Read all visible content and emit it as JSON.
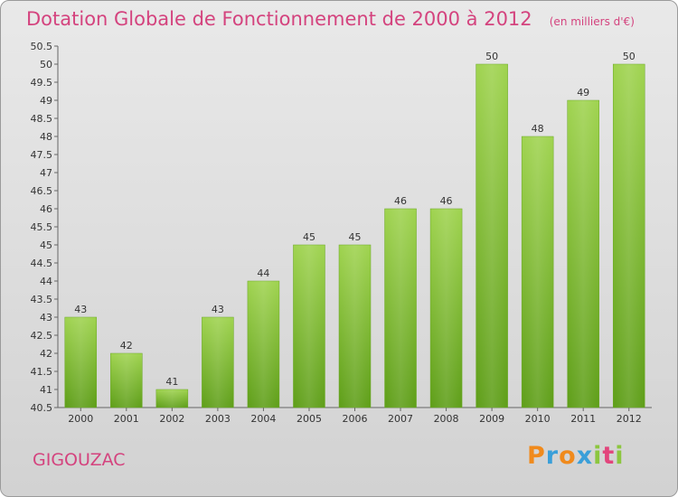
{
  "chart_data": {
    "type": "bar",
    "title": "Dotation Globale de Fonctionnement de 2000 à 2012",
    "subtitle": "(en milliers d'€)",
    "categories": [
      "2000",
      "2001",
      "2002",
      "2003",
      "2004",
      "2005",
      "2006",
      "2007",
      "2008",
      "2009",
      "2010",
      "2011",
      "2012"
    ],
    "values": [
      43,
      42,
      41,
      43,
      44,
      45,
      45,
      46,
      46,
      50,
      48,
      49,
      50
    ],
    "ylim": [
      40.5,
      50.5
    ],
    "yticks": [
      "40.5",
      "41",
      "41.5",
      "42",
      "42.5",
      "43",
      "43.5",
      "44",
      "44.5",
      "45",
      "45.5",
      "46",
      "46.5",
      "47",
      "47.5",
      "48",
      "48.5",
      "49",
      "49.5",
      "50",
      "50.5"
    ],
    "grid": false,
    "bar_color": "#7ab531"
  },
  "commune": "GIGOUZAC",
  "brand": {
    "letters": [
      "P",
      "r",
      "o",
      "x",
      "i",
      "t",
      "i"
    ],
    "colors": [
      "#f08a1c",
      "#3a9fd9",
      "#f08a1c",
      "#3a9fd9",
      "#8cc63f",
      "#e2457c",
      "#8cc63f"
    ]
  }
}
